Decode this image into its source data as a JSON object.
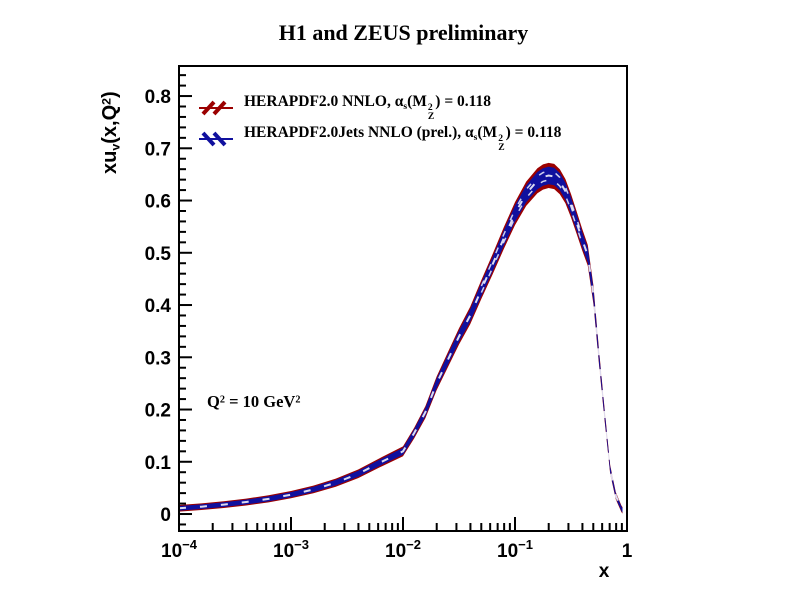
{
  "title": "H1 and ZEUS preliminary",
  "x_axis_label": "x",
  "y_axis_label": {
    "segments": [
      {
        "t": "xu"
      },
      {
        "t": "v",
        "v": "sub"
      },
      {
        "t": "(x,Q"
      },
      {
        "t": "2",
        "v": "sup"
      },
      {
        "t": ")"
      }
    ]
  },
  "annotation": {
    "segments": [
      {
        "t": "Q"
      },
      {
        "t": "2",
        "v": "sup"
      },
      {
        "t": " = 10 GeV"
      },
      {
        "t": "2",
        "v": "sup"
      }
    ]
  },
  "legend": {
    "entries": [
      {
        "name": "HERAPDF2.0 NNLO",
        "marker": "red-hatch-band",
        "color": "#9b0000",
        "segments": [
          {
            "t": "HERAPDF2.0 NNLO, "
          },
          {
            "t": "α",
            "v": "alpha"
          },
          {
            "t": "s",
            "v": "sub"
          },
          {
            "t": "(M"
          },
          {
            "stack": [
              "2",
              "Z"
            ]
          },
          {
            "t": ") = 0.118"
          }
        ]
      },
      {
        "name": "HERAPDF2.0Jets NNLO (prel.)",
        "marker": "blue-hatch-band",
        "color": "#10109e",
        "segments": [
          {
            "t": "HERAPDF2.0Jets NNLO (prel.), "
          },
          {
            "t": "α",
            "v": "alpha"
          },
          {
            "t": "s",
            "v": "sub"
          },
          {
            "t": "(M"
          },
          {
            "stack": [
              "2",
              "Z"
            ]
          },
          {
            "t": ") = 0.118"
          }
        ]
      }
    ]
  },
  "chart_data": {
    "type": "line",
    "subtype": "uncertainty-bands",
    "xscale": "log",
    "xlim": [
      0.0001,
      1
    ],
    "ylim": [
      -0.0325,
      0.8575
    ],
    "grid": false,
    "x_tick_logx": [
      -4,
      -3,
      -2,
      -1,
      0
    ],
    "x_ticks": [
      {
        "base": "10",
        "exp": "−4"
      },
      {
        "base": "10",
        "exp": "−3"
      },
      {
        "base": "10",
        "exp": "−2"
      },
      {
        "base": "10",
        "exp": "−1"
      },
      {
        "base": "1",
        "exp": ""
      }
    ],
    "y_tick_values": [
      0,
      0.1,
      0.2,
      0.3,
      0.4,
      0.5,
      0.6,
      0.7,
      0.8
    ],
    "y_ticks": [
      "0",
      "0.1",
      "0.2",
      "0.3",
      "0.4",
      "0.5",
      "0.6",
      "0.7",
      "0.8"
    ],
    "series": [
      {
        "name": "HERAPDF2.0 NNLO",
        "color": "#9b0000",
        "band": "outer",
        "logx": [
          -4.0,
          -3.8,
          -3.6,
          -3.4,
          -3.2,
          -3.0,
          -2.8,
          -2.6,
          -2.4,
          -2.2,
          -2.0,
          -1.9,
          -1.8,
          -1.7,
          -1.6,
          -1.5,
          -1.4,
          -1.3,
          -1.2,
          -1.1,
          -1.0,
          -0.9,
          -0.8,
          -0.75,
          -0.7,
          -0.65,
          -0.6,
          -0.55,
          -0.5,
          -0.45,
          -0.4,
          -0.35,
          -0.3,
          -0.25,
          -0.2,
          -0.15,
          -0.1,
          -0.05,
          -0.04
        ],
        "center": [
          0.011,
          0.014,
          0.018,
          0.023,
          0.029,
          0.037,
          0.047,
          0.06,
          0.077,
          0.099,
          0.12,
          0.155,
          0.195,
          0.25,
          0.295,
          0.34,
          0.38,
          0.43,
          0.478,
          0.528,
          0.575,
          0.613,
          0.638,
          0.645,
          0.648,
          0.646,
          0.636,
          0.618,
          0.59,
          0.558,
          0.525,
          0.495,
          0.42,
          0.3,
          0.19,
          0.085,
          0.035,
          0.01,
          0.007
        ],
        "halfwidth": [
          0.0063,
          0.0064,
          0.0065,
          0.0066,
          0.0068,
          0.007,
          0.0073,
          0.0077,
          0.0082,
          0.0088,
          0.0094,
          0.0103,
          0.0115,
          0.013,
          0.0143,
          0.0155,
          0.0166,
          0.018,
          0.0194,
          0.0208,
          0.0221,
          0.0232,
          0.0239,
          0.0241,
          0.0241,
          0.0241,
          0.0238,
          0.0233,
          0.0225,
          0.0216,
          0.0207,
          0.0199,
          0.0178,
          0.0144,
          0.0113,
          0.0084,
          0.007,
          0.0063,
          0.0062
        ]
      },
      {
        "name": "HERAPDF2.0Jets NNLO (prel.)",
        "color": "#10109e",
        "band": "inner",
        "halfwidth_factor": 0.7
      }
    ],
    "hatch_dash_color": "#ffffff",
    "frame_color": "#000000"
  }
}
